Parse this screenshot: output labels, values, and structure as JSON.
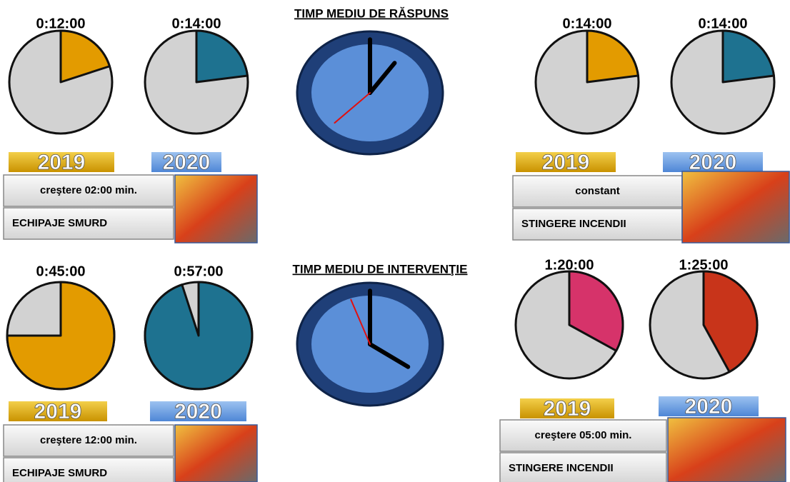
{
  "sections": [
    {
      "title": "TIMP MEDIU DE RĂSPUNS",
      "groups": [
        {
          "pies": [
            {
              "time": "0:12:00",
              "share": 20,
              "year": "2019",
              "color": "#e39b00"
            },
            {
              "time": "0:14:00",
              "share": 23,
              "year": "2020",
              "color": "#1e7290"
            }
          ],
          "note": "creştere 02:00 min.",
          "label": "ECHIPAJE SMURD"
        },
        {
          "pies": [
            {
              "time": "0:14:00",
              "share": 23,
              "year": "2019",
              "color": "#e39b00"
            },
            {
              "time": "0:14:00",
              "share": 23,
              "year": "2020",
              "color": "#1e7290"
            }
          ],
          "note": "constant",
          "label": "STINGERE INCENDII"
        }
      ]
    },
    {
      "title": "TIMP MEDIU DE INTERVENŢIE",
      "groups": [
        {
          "pies": [
            {
              "time": "0:45:00",
              "share": 75,
              "year": "2019",
              "color": "#e39b00"
            },
            {
              "time": "0:57:00",
              "share": 95,
              "year": "2020",
              "color": "#1e7290"
            }
          ],
          "note": "creştere 12:00 min.",
          "label": "ECHIPAJE SMURD"
        },
        {
          "pies": [
            {
              "time": "1:20:00",
              "share": 33,
              "year": "2019",
              "color": "#d6336a"
            },
            {
              "time": "1:25:00",
              "share": 42,
              "year": "2020",
              "color": "#c8341a"
            }
          ],
          "note": "creştere 05:00 min.",
          "label": "STINGERE INCENDII"
        }
      ]
    }
  ]
}
